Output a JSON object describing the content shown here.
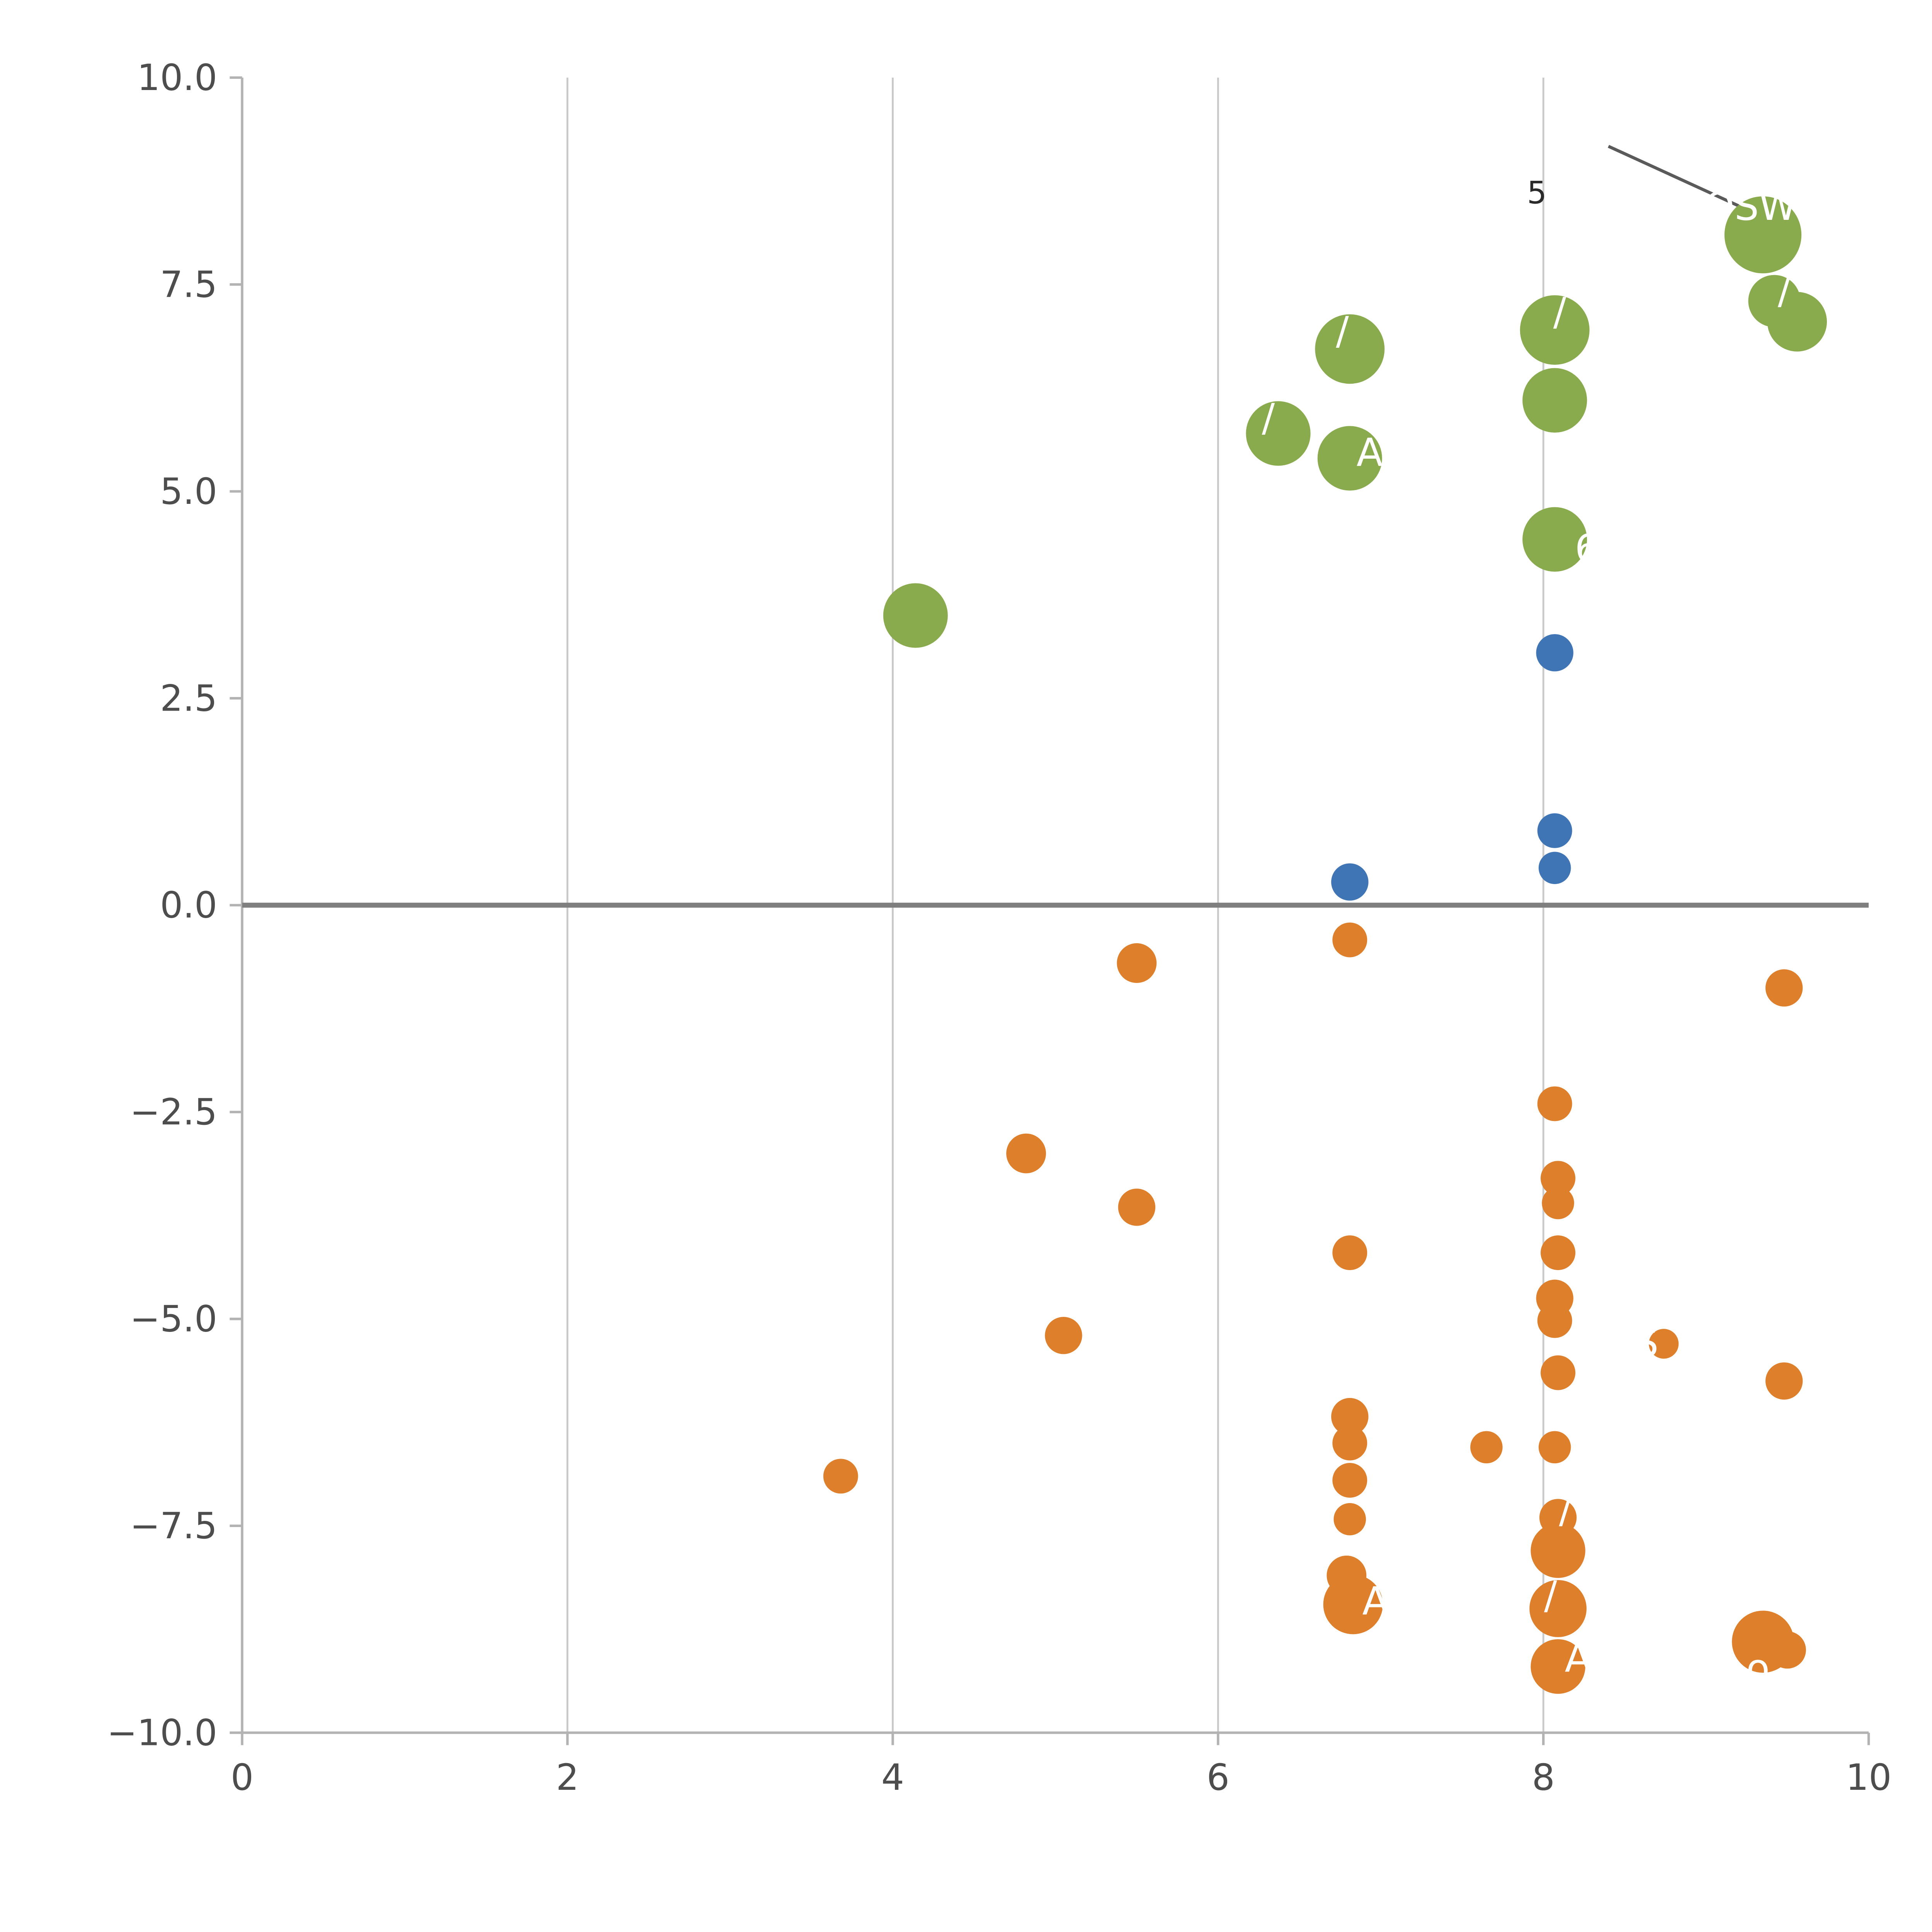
{
  "chart_data": {
    "type": "scatter",
    "title": "",
    "xlabel": "",
    "ylabel": "",
    "xlim": [
      0,
      10
    ],
    "ylim": [
      -10,
      10
    ],
    "grid": "vertical-only",
    "legend": "none",
    "background_color": "#ffffff",
    "gridline_color": "#c9c9c9",
    "spine_color": "#b3b3b3",
    "tick_label_color": "#4d4d4d",
    "zero_line": {
      "y": 0,
      "color": "#7f7f7f",
      "width": 4
    },
    "annotation_line": {
      "x1": 8.4,
      "y1": 9.17,
      "x2": 9.49,
      "y2": 8.19,
      "color": "#5a5a5a",
      "width": 2.5
    },
    "x_ticks": [
      {
        "value": 0,
        "label": "0"
      },
      {
        "value": 2,
        "label": "2"
      },
      {
        "value": 4,
        "label": "4"
      },
      {
        "value": 6,
        "label": "6"
      },
      {
        "value": 8,
        "label": "8"
      },
      {
        "value": 10,
        "label": "10"
      }
    ],
    "y_ticks": [
      {
        "value": 10,
        "label": "10.0"
      },
      {
        "value": 7.5,
        "label": "7.5"
      },
      {
        "value": 5,
        "label": "5.0"
      },
      {
        "value": 2.5,
        "label": "2.5"
      },
      {
        "value": 0,
        "label": "0.0"
      },
      {
        "value": -2.5,
        "label": "−2.5"
      },
      {
        "value": -5,
        "label": "−5.0"
      },
      {
        "value": -7.5,
        "label": "−7.5"
      },
      {
        "value": -10,
        "label": "−10.0"
      }
    ],
    "gridline_x_values": [
      2,
      4,
      6,
      8
    ],
    "series": [
      {
        "name": "green",
        "color": "#89ab4e",
        "points": [
          {
            "x": 9.35,
            "y": 8.1,
            "r": 31,
            "label": "OSW",
            "dx": -10,
            "dy": -22
          },
          {
            "x": 9.42,
            "y": 7.3,
            "r": 21,
            "label": "/",
            "dx": 8,
            "dy": -8
          },
          {
            "x": 9.56,
            "y": 7.05,
            "r": 24
          },
          {
            "x": 8.07,
            "y": 6.95,
            "r": 28,
            "label": "/",
            "dx": 4,
            "dy": -14
          },
          {
            "x": 8.07,
            "y": 6.1,
            "r": 26
          },
          {
            "x": 6.81,
            "y": 6.72,
            "r": 28,
            "label": "/",
            "dx": -6,
            "dy": -14
          },
          {
            "x": 6.37,
            "y": 5.7,
            "r": 26,
            "label": "/",
            "dx": -8,
            "dy": -12
          },
          {
            "x": 6.81,
            "y": 5.4,
            "r": 26,
            "label": "A",
            "dx": 16,
            "dy": -4
          },
          {
            "x": 8.07,
            "y": 4.42,
            "r": 26,
            "label": "6",
            "dx": 26,
            "dy": 8
          },
          {
            "x": 4.14,
            "y": 3.5,
            "r": 26
          }
        ]
      },
      {
        "name": "blue",
        "color": "#3f74b5",
        "points": [
          {
            "x": 8.07,
            "y": 3.05,
            "r": 15
          },
          {
            "x": 8.07,
            "y": 0.9,
            "r": 14
          },
          {
            "x": 8.07,
            "y": 0.45,
            "r": 13
          },
          {
            "x": 6.81,
            "y": 0.28,
            "r": 15
          }
        ]
      },
      {
        "name": "orange",
        "color": "#dd7f2b",
        "points": [
          {
            "x": 6.81,
            "y": -0.42,
            "r": 14
          },
          {
            "x": 5.5,
            "y": -0.7,
            "r": 16
          },
          {
            "x": 9.48,
            "y": -1.0,
            "r": 15
          },
          {
            "x": 8.07,
            "y": -2.4,
            "r": 14
          },
          {
            "x": 4.82,
            "y": -3.0,
            "r": 16
          },
          {
            "x": 8.09,
            "y": -3.3,
            "r": 14
          },
          {
            "x": 8.09,
            "y": -3.6,
            "r": 13
          },
          {
            "x": 5.5,
            "y": -3.65,
            "r": 15
          },
          {
            "x": 6.81,
            "y": -4.2,
            "r": 14
          },
          {
            "x": 8.09,
            "y": -4.2,
            "r": 14
          },
          {
            "x": 8.07,
            "y": -4.75,
            "r": 15
          },
          {
            "x": 8.07,
            "y": -5.02,
            "r": 14
          },
          {
            "x": 5.05,
            "y": -5.2,
            "r": 15
          },
          {
            "x": 8.74,
            "y": -5.3,
            "r": 12,
            "label": "S",
            "dx": -14,
            "dy": 0
          },
          {
            "x": 8.09,
            "y": -5.65,
            "r": 14
          },
          {
            "x": 9.48,
            "y": -5.75,
            "r": 15
          },
          {
            "x": 6.81,
            "y": -6.18,
            "r": 15
          },
          {
            "x": 6.81,
            "y": -6.5,
            "r": 14
          },
          {
            "x": 7.65,
            "y": -6.55,
            "r": 13
          },
          {
            "x": 8.07,
            "y": -6.55,
            "r": 13
          },
          {
            "x": 3.68,
            "y": -6.9,
            "r": 14
          },
          {
            "x": 6.81,
            "y": -6.95,
            "r": 14
          },
          {
            "x": 6.81,
            "y": -7.42,
            "r": 13
          },
          {
            "x": 8.09,
            "y": -7.4,
            "r": 15,
            "label": "/",
            "dx": 6,
            "dy": -6
          },
          {
            "x": 8.09,
            "y": -7.8,
            "r": 22
          },
          {
            "x": 6.79,
            "y": -8.1,
            "r": 16
          },
          {
            "x": 6.83,
            "y": -8.45,
            "r": 24,
            "label": "A",
            "dx": 18,
            "dy": -2
          },
          {
            "x": 8.09,
            "y": -8.5,
            "r": 23,
            "label": "/",
            "dx": -6,
            "dy": -10
          },
          {
            "x": 9.35,
            "y": -8.9,
            "r": 25,
            "label": "o",
            "dx": -4,
            "dy": 22
          },
          {
            "x": 9.5,
            "y": -9.0,
            "r": 15
          },
          {
            "x": 8.09,
            "y": -9.2,
            "r": 22,
            "label": "A",
            "dx": 16,
            "dy": -6
          }
        ]
      }
    ],
    "annotations": [
      {
        "text": "5",
        "x": 7.96,
        "y": 8.48
      }
    ]
  }
}
